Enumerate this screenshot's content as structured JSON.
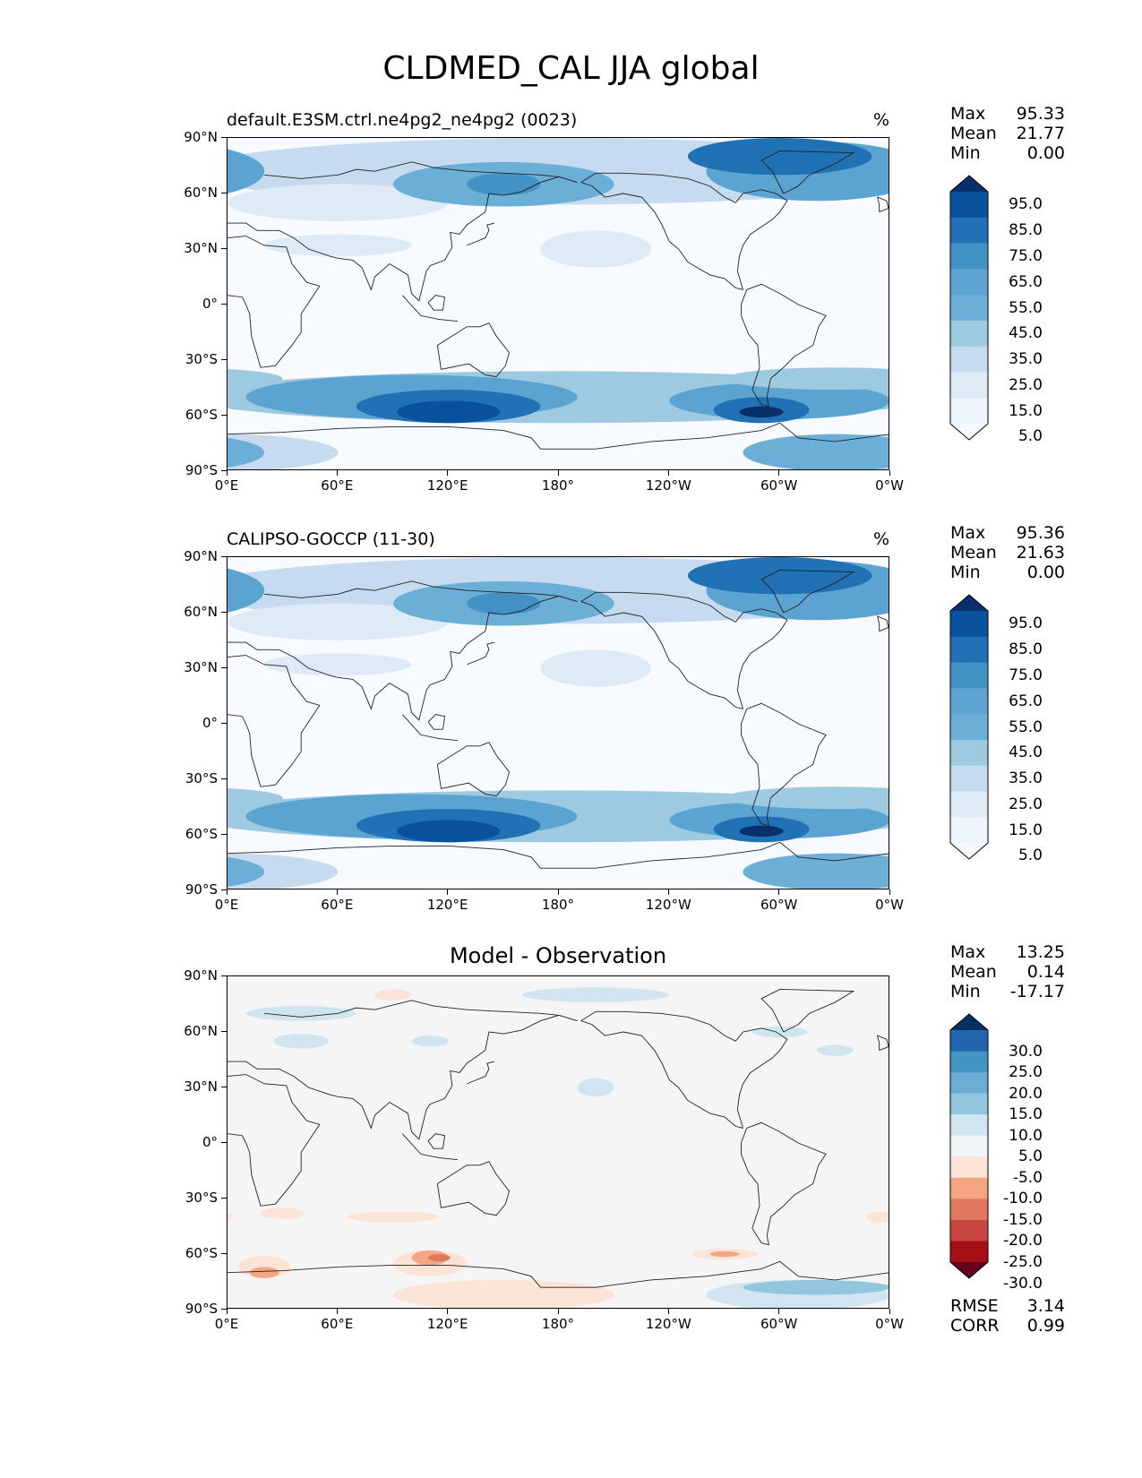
{
  "title": "CLDMED_CAL JJA global",
  "panels": [
    {
      "title": "default.E3SM.ctrl.ne4pg2_ne4pg2 (0023)",
      "unit": "%",
      "stats": {
        "max_label": "Max",
        "max": "95.33",
        "mean_label": "Mean",
        "mean": "21.77",
        "min_label": "Min",
        "min": "0.00"
      }
    },
    {
      "title": "CALIPSO-GOCCP (11-30)",
      "unit": "%",
      "stats": {
        "max_label": "Max",
        "max": "95.36",
        "mean_label": "Mean",
        "mean": "21.63",
        "min_label": "Min",
        "min": "0.00"
      }
    },
    {
      "title": "Model - Observation",
      "unit": "",
      "stats": {
        "max_label": "Max",
        "max": "13.25",
        "mean_label": "Mean",
        "mean": "0.14",
        "min_label": "Min",
        "min": "-17.17"
      },
      "metrics": {
        "rmse_label": "RMSE",
        "rmse": "3.14",
        "corr_label": "CORR",
        "corr": "0.99"
      }
    }
  ],
  "axes": {
    "lat_ticks": [
      "90°N",
      "60°N",
      "30°N",
      "0°",
      "30°S",
      "60°S",
      "90°S"
    ],
    "lon_ticks": [
      "0°E",
      "60°E",
      "120°E",
      "180°",
      "120°W",
      "60°W",
      "0°W"
    ]
  },
  "colorbars": {
    "abs_levels": [
      "95.0",
      "85.0",
      "75.0",
      "65.0",
      "55.0",
      "45.0",
      "35.0",
      "25.0",
      "15.0",
      "5.0"
    ],
    "abs_colors": [
      "#08306b",
      "#08519c",
      "#2171b5",
      "#4292c6",
      "#5ba3d0",
      "#6baed6",
      "#9ecae1",
      "#c6dbef",
      "#deebf7",
      "#eef5fc",
      "#f7fbff"
    ],
    "diff_levels": [
      "30.0",
      "25.0",
      "20.0",
      "15.0",
      "10.0",
      "5.0",
      "-5.0",
      "-10.0",
      "-15.0",
      "-20.0",
      "-25.0",
      "-30.0"
    ],
    "diff_colors": [
      "#053061",
      "#2166ac",
      "#4393c3",
      "#6aaed6",
      "#92c5de",
      "#d1e5f0",
      "#f0f5f8",
      "#fbe3d6",
      "#f4a582",
      "#e0785f",
      "#c94741",
      "#a50f15",
      "#67001f"
    ]
  }
}
